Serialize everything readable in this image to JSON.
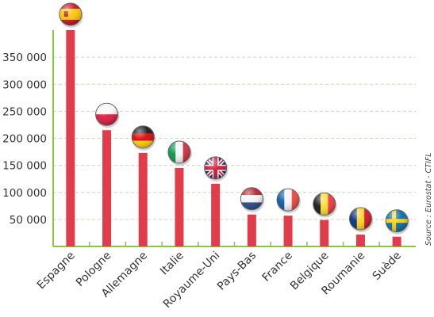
{
  "chart_data": {
    "type": "bar",
    "categories": [
      "Espagne",
      "Pologne",
      "Allemagne",
      "Italie",
      "Royaume-Uni",
      "Pays-Bas",
      "France",
      "Belgique",
      "Roumanie",
      "Suède"
    ],
    "values": [
      400000,
      215000,
      173000,
      145000,
      116000,
      59000,
      57000,
      49000,
      22000,
      18000
    ],
    "flags": [
      "spain-flag-icon",
      "poland-flag-icon",
      "germany-flag-icon",
      "italy-flag-icon",
      "uk-flag-icon",
      "netherlands-flag-icon",
      "france-flag-icon",
      "belgium-flag-icon",
      "romania-flag-icon",
      "sweden-flag-icon"
    ],
    "yticks": [
      50000,
      100000,
      150000,
      200000,
      250000,
      300000,
      350000
    ],
    "ytick_labels": [
      "50 000",
      "100 000",
      "150 000",
      "200 000",
      "250 000",
      "300 000",
      "350 000"
    ],
    "ylim": [
      0,
      400000
    ],
    "grid": true,
    "source": "Source : Eurostat - CTIFL",
    "colors": {
      "bar": "#e03c4a",
      "axis": "#8cc63f",
      "grid": "#c6dcaa"
    }
  }
}
